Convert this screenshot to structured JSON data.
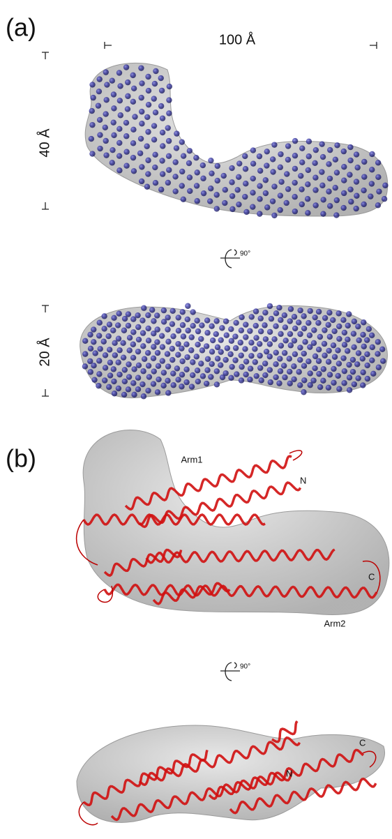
{
  "panel_a": {
    "label": "(a)",
    "width_label": "100 Å",
    "height_label_top": "40 Å",
    "rotation_label": "90°",
    "height_label_side": "20 Å"
  },
  "panel_b": {
    "label": "(b)",
    "arm1": "Arm1",
    "n_top": "N",
    "c_top": "C",
    "arm2": "Arm2",
    "rotation_label": "90°",
    "c_side": "C",
    "n_side": "N"
  }
}
